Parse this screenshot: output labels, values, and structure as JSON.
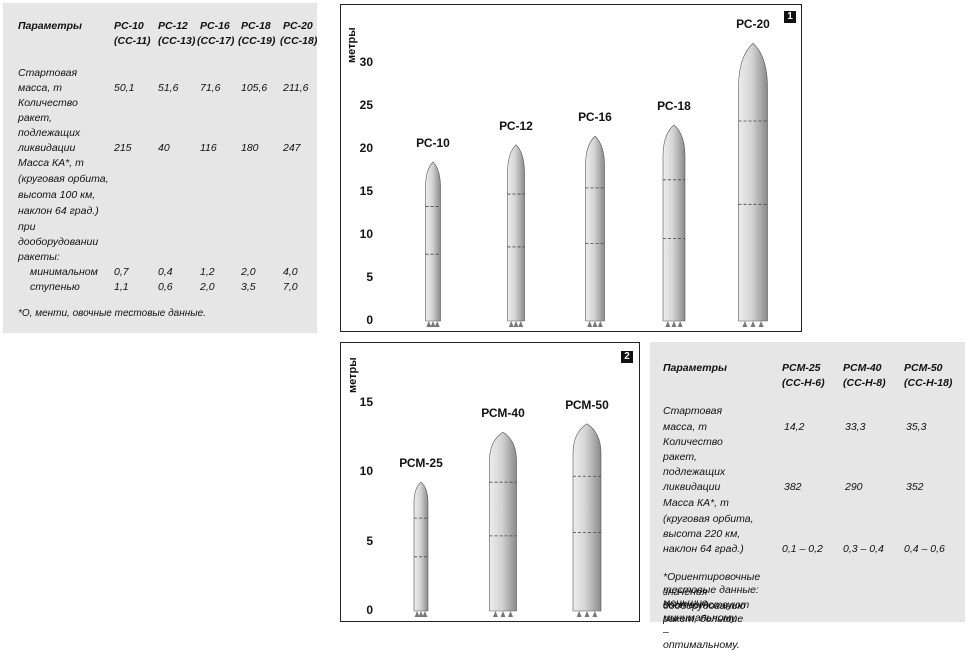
{
  "table1": {
    "header": [
      "Параметры",
      "РС-10",
      "(СС-11)",
      "РС-12",
      "(СС-13)",
      "РС-16",
      "(СС-17)",
      "РС-18",
      "(СС-19)",
      "РС-20",
      "(СС-18)"
    ],
    "rows": {
      "label_start_1": "Стартовая",
      "label_start_2": "масса, т",
      "start_mass": [
        "50,1",
        "51,6",
        "71,6",
        "105,6",
        "211,6"
      ],
      "label_count_1": "Количество",
      "label_count_2": "ракет,",
      "label_count_3": "подлежащих",
      "label_count_4": "ликвидации",
      "count": [
        "215",
        "40",
        "116",
        "180",
        "247"
      ],
      "label_mass_1": "Масса КА*, т",
      "label_mass_2": "(круговая орбита,",
      "label_mass_3": "высота 100 км,",
      "label_mass_4": "наклон 64 град.)",
      "label_mass_5": "при",
      "label_mass_6": "дооборудовании",
      "label_mass_7": "ракеты:",
      "label_min": "минимальном",
      "min": [
        "0,7",
        "0,4",
        "1,2",
        "2,0",
        "4,0"
      ],
      "label_step": "ступенью",
      "step": [
        "1,1",
        "0,6",
        "2,0",
        "3,5",
        "7,0"
      ]
    },
    "footnote": "*О, менти, овочные тестовые данные."
  },
  "table2": {
    "header": [
      "Параметры",
      "РСМ-25",
      "(СС-Н-6)",
      "РСМ-40",
      "(СС-Н-8)",
      "РСМ-50",
      "(СС-Н-18)"
    ],
    "label_start_1": "Стартовая",
    "label_start_2": "масса, т",
    "start_mass": [
      "14,2",
      "33,3",
      "35,3"
    ],
    "label_count_1": "Количество",
    "label_count_2": "ракет,",
    "label_count_3": "подлежащих",
    "label_count_4": "ликвидации",
    "count": [
      "382",
      "290",
      "352"
    ],
    "label_mass_1": "Масса КА*, т",
    "label_mass_2": "(круговая орбита,",
    "label_mass_3": "высота 220 км,",
    "label_mass_4": "наклон 64 град.)",
    "mass": [
      "0,1 – 0,2",
      "0,3 – 0,4",
      "0,4 – 0,6"
    ],
    "footnote_1": "*Ориентировочные тестовые данные: меньшие",
    "footnote_2": "значения соответствуют минимальному",
    "footnote_3": "дооборудованию ракет, большие – оптимальному."
  },
  "chart_data": [
    {
      "type": "bar",
      "badge": "1",
      "ylabel": "метры",
      "ylim": [
        0,
        33
      ],
      "yticks": [
        "0",
        "5",
        "10",
        "15",
        "20",
        "25",
        "30"
      ],
      "categories": [
        "РС-10",
        "РС-12",
        "РС-16",
        "РС-18",
        "РС-20"
      ],
      "values": [
        18.5,
        20.5,
        21.5,
        22.8,
        32.3
      ]
    },
    {
      "type": "bar",
      "badge": "2",
      "ylabel": "метры",
      "ylim": [
        0,
        17
      ],
      "yticks": [
        "0",
        "5",
        "10",
        "15"
      ],
      "categories": [
        "РСМ-25",
        "РСМ-40",
        "РСМ-50"
      ],
      "values": [
        9.3,
        12.9,
        13.5
      ]
    }
  ],
  "colors": {
    "panel": "#e6e6e6",
    "rocket_light": "#ededed",
    "rocket_dark": "#8a8a8a"
  }
}
